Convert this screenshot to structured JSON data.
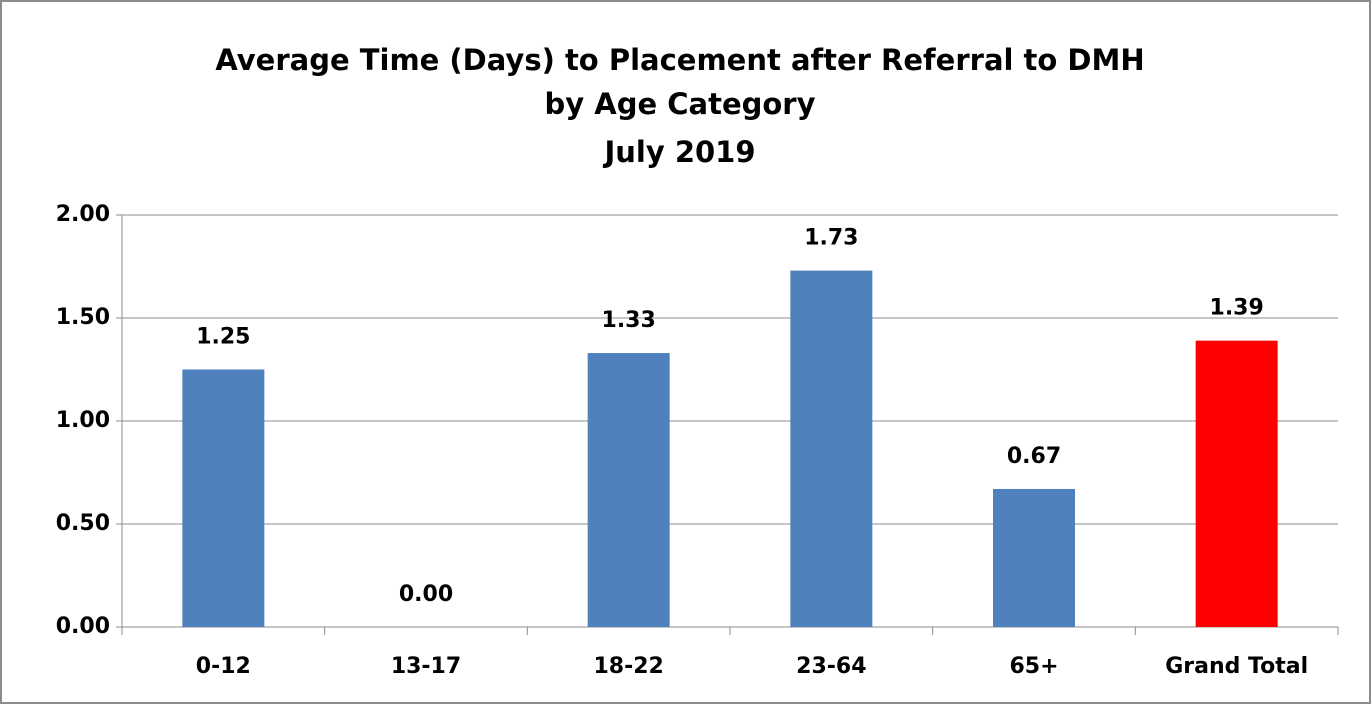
{
  "chart_data": {
    "type": "bar",
    "title": [
      "Average Time (Days) to Placement after Referral to DMH",
      "by Age Category",
      "July 2019"
    ],
    "categories": [
      "0-12",
      "13-17",
      "18-22",
      "23-64",
      "65+",
      "Grand Total"
    ],
    "values": [
      1.25,
      0,
      1.33,
      1.73,
      0.67,
      1.39
    ],
    "value_labels": [
      "1.25",
      "0.00",
      "1.33",
      "1.73",
      "0.67",
      "1.39"
    ],
    "colors": [
      "#4f81bd",
      "#4f81bd",
      "#4f81bd",
      "#4f81bd",
      "#4f81bd",
      "#ff0000"
    ],
    "ylim": [
      0,
      2
    ],
    "yticks": [
      {
        "value": 0,
        "label": "0.00"
      },
      {
        "value": 0.5,
        "label": "0.50"
      },
      {
        "value": 1,
        "label": "1.00"
      },
      {
        "value": 1.5,
        "label": "1.50"
      },
      {
        "value": 2,
        "label": "2.00"
      }
    ],
    "grid": true
  }
}
